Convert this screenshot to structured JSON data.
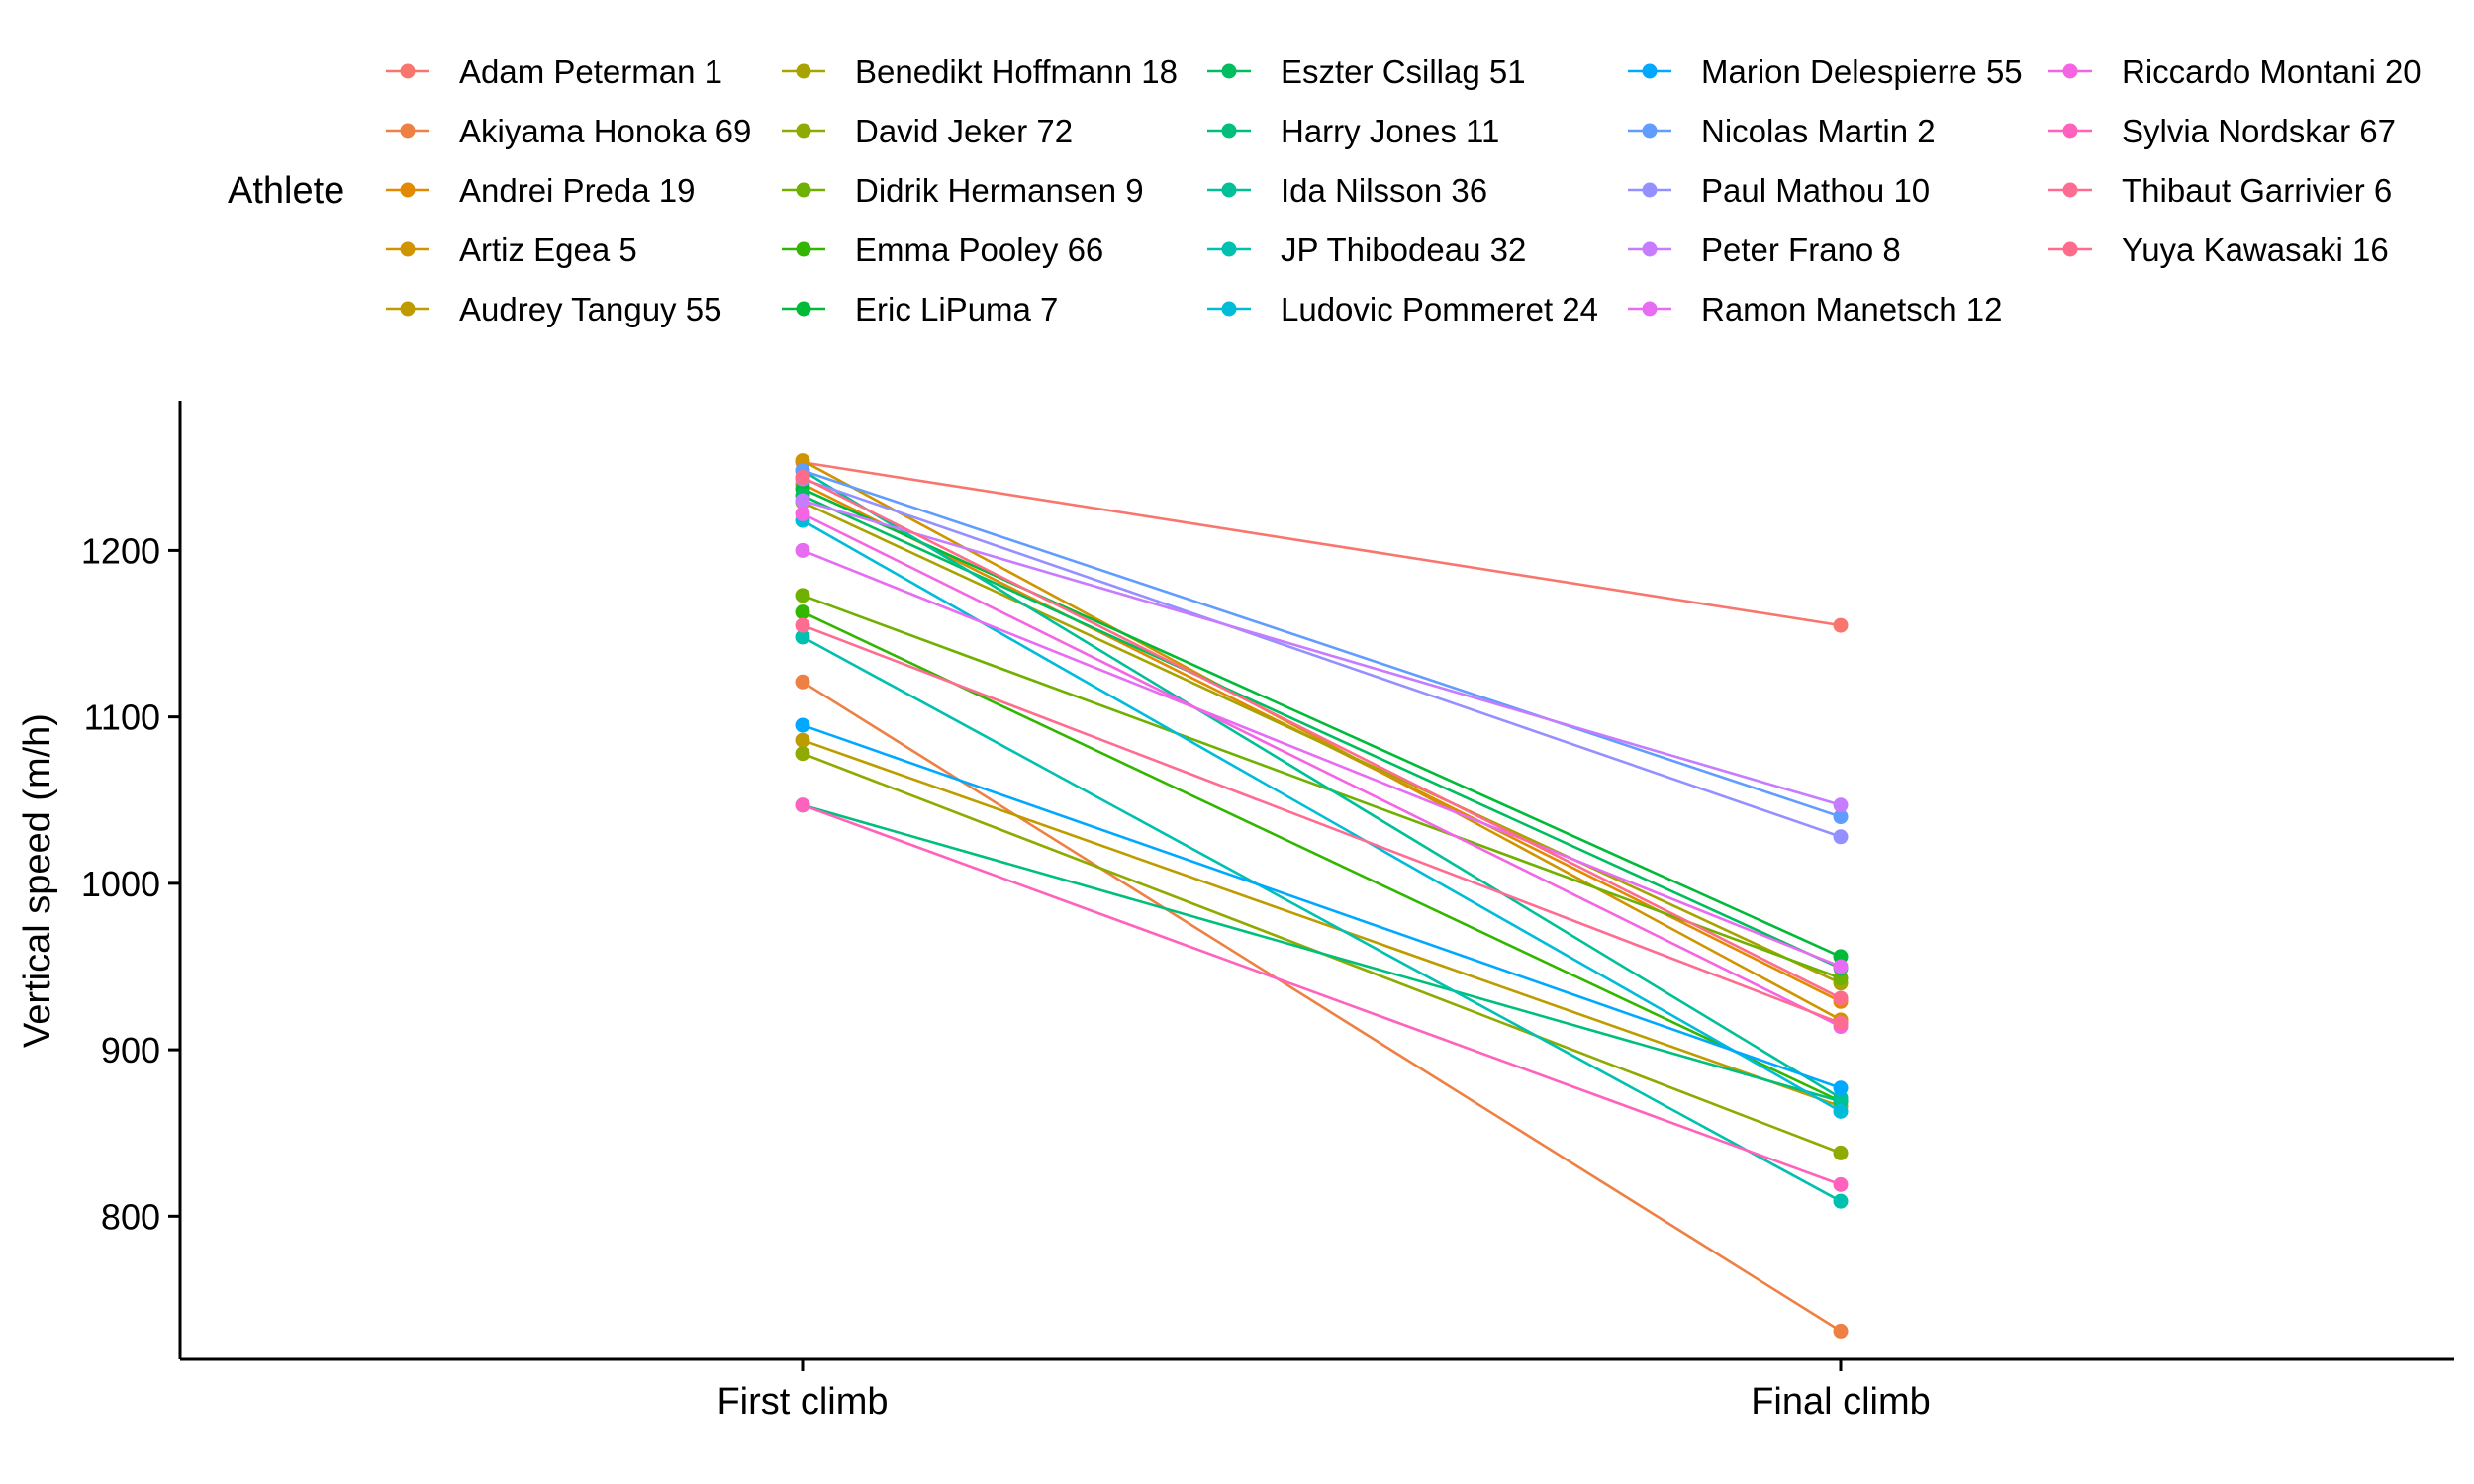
{
  "chart_data": {
    "type": "line",
    "title": "",
    "xlabel": "",
    "ylabel": "Vertical speed (m/h)",
    "categories": [
      "First climb",
      "Final climb"
    ],
    "ylim": [
      714,
      1290
    ],
    "yticks": [
      800,
      900,
      1000,
      1100,
      1200
    ],
    "legend_title": "Athlete",
    "legend_position": "top",
    "series": [
      {
        "name": "Adam Peterman 1",
        "color": "#F8766D",
        "values": [
          1253,
          1155
        ]
      },
      {
        "name": "Akiyama Honoka 69",
        "color": "#EE8043",
        "values": [
          1121,
          731
        ]
      },
      {
        "name": "Andrei Preda 19",
        "color": "#E18A00",
        "values": [
          1240,
          929
        ]
      },
      {
        "name": "Artiz Egea 5",
        "color": "#D09400",
        "values": [
          1254,
          918
        ]
      },
      {
        "name": "Audrey Tanguy 55",
        "color": "#BE9C00",
        "values": [
          1086,
          866
        ]
      },
      {
        "name": "Benedikt Hoffmann 18",
        "color": "#A8A300",
        "values": [
          1229,
          940
        ]
      },
      {
        "name": "David Jeker 72",
        "color": "#8FAA00",
        "values": [
          1078,
          838
        ]
      },
      {
        "name": "Didrik Hermansen 9",
        "color": "#6FB000",
        "values": [
          1173,
          943
        ]
      },
      {
        "name": "Emma Pooley 66",
        "color": "#32B600",
        "values": [
          1163,
          869
        ]
      },
      {
        "name": "Eric LiPuma 7",
        "color": "#00BA38",
        "values": [
          1237,
          956
        ]
      },
      {
        "name": "Eszter Csillag 51",
        "color": "#00BD5F",
        "values": [
          1233,
          949
        ]
      },
      {
        "name": "Harry Jones 11",
        "color": "#00BF7D",
        "values": [
          1047,
          869
        ]
      },
      {
        "name": "Ida Nilsson 36",
        "color": "#00C097",
        "values": [
          1248,
          871
        ]
      },
      {
        "name": "JP Thibodeau 32",
        "color": "#00C0AF",
        "values": [
          1148,
          809
        ]
      },
      {
        "name": "Ludovic Pommeret 24",
        "color": "#00BCD8",
        "values": [
          1218,
          863
        ]
      },
      {
        "name": "Marion Delespierre 55",
        "color": "#00A9FF",
        "values": [
          1095,
          877
        ]
      },
      {
        "name": "Nicolas Martin 2",
        "color": "#619CFF",
        "values": [
          1248,
          1040
        ]
      },
      {
        "name": "Paul Mathou 10",
        "color": "#9590FF",
        "values": [
          1243,
          1028
        ]
      },
      {
        "name": "Peter Frano 8",
        "color": "#C77CFF",
        "values": [
          1230,
          1047
        ]
      },
      {
        "name": "Ramon Manetsch 12",
        "color": "#E76BF3",
        "values": [
          1200,
          950
        ]
      },
      {
        "name": "Riccardo Montani 20",
        "color": "#F564E3",
        "values": [
          1222,
          914
        ]
      },
      {
        "name": "Sylvia Nordskar 67",
        "color": "#FF62BC",
        "values": [
          1047,
          819
        ]
      },
      {
        "name": "Thibaut Garrivier 6",
        "color": "#FF6C91",
        "values": [
          1155,
          916
        ]
      },
      {
        "name": "Yuya Kawasaki 16",
        "color": "#FF6B8A",
        "values": [
          1244,
          931
        ]
      }
    ]
  }
}
